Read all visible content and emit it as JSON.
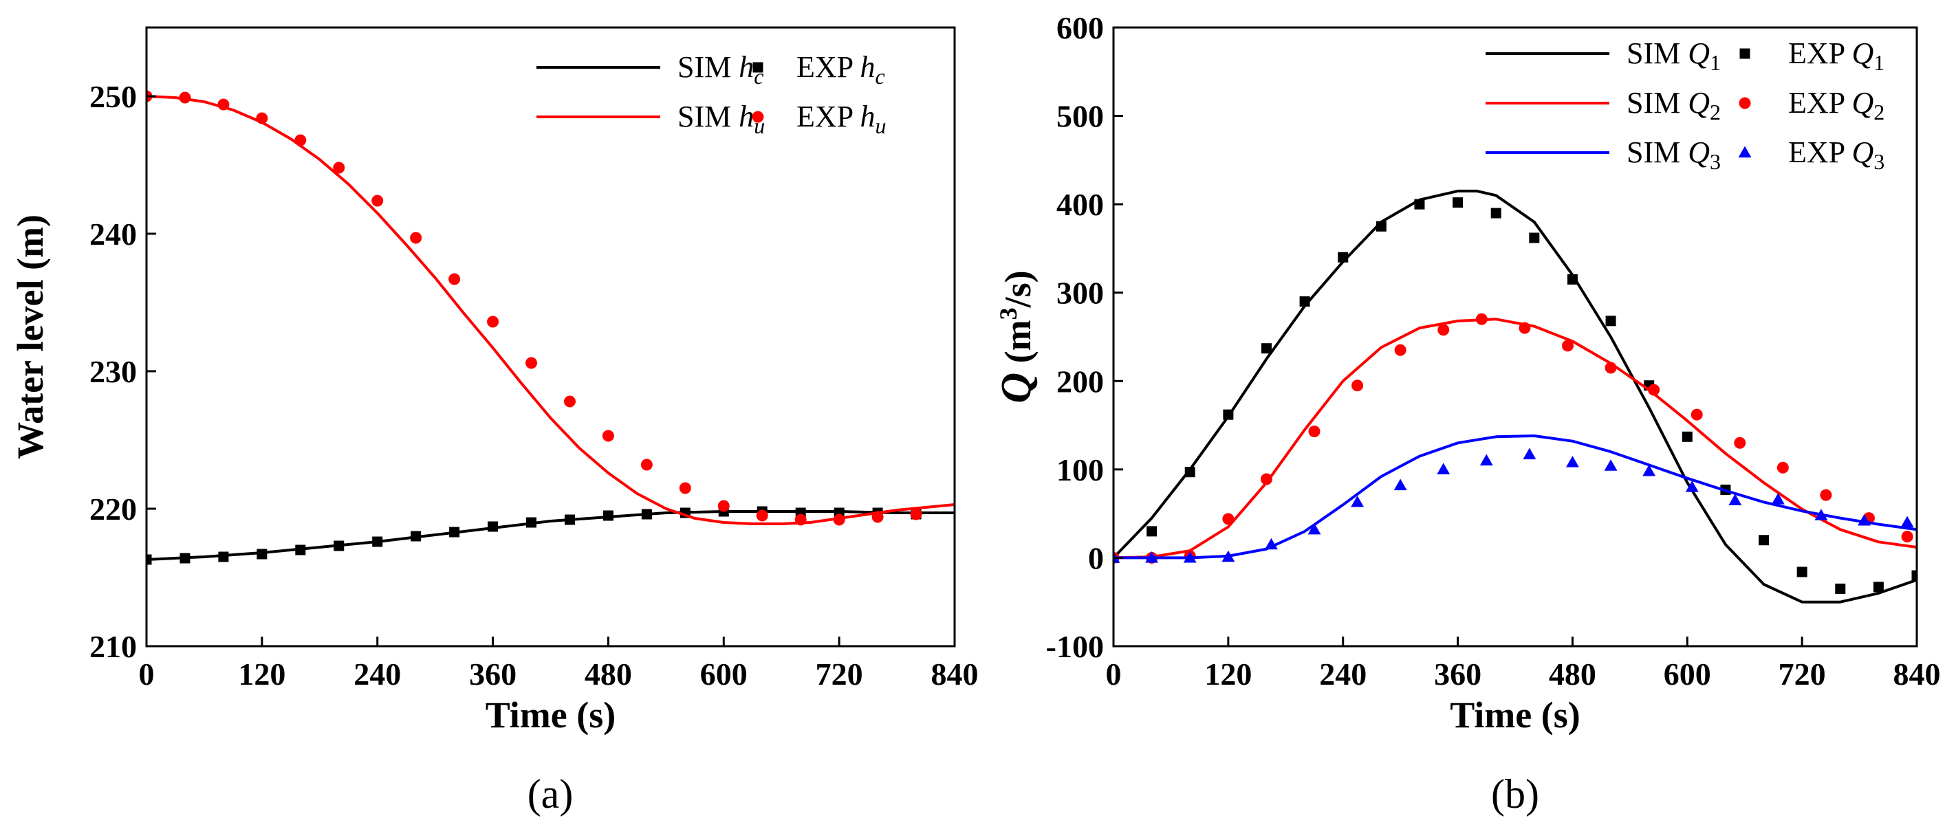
{
  "chart_data": [
    {
      "type": "line",
      "panel": "a",
      "caption": "(a)",
      "xlabel": "Time (s)",
      "ylabel": "Water level (m)",
      "xlim": [
        0,
        840
      ],
      "ylim": [
        210,
        255
      ],
      "xticks": [
        0,
        120,
        240,
        360,
        480,
        600,
        720,
        840
      ],
      "xtick_labels": [
        "0",
        "120",
        "240",
        "360",
        "480",
        "600",
        "720",
        "840"
      ],
      "yticks": [
        210,
        220,
        230,
        240,
        250
      ],
      "ytick_labels": [
        "210",
        "220",
        "230",
        "240",
        "250"
      ],
      "grid": false,
      "legend_position": "top-right",
      "series": [
        {
          "name": "SIM h_c",
          "legend_prefix": "SIM ",
          "legend_var": "h",
          "legend_sub": "c",
          "kind": "line",
          "color": "#000000",
          "x": [
            0,
            60,
            120,
            180,
            240,
            300,
            360,
            420,
            480,
            540,
            600,
            660,
            720,
            780,
            840
          ],
          "y": [
            216.3,
            216.5,
            216.8,
            217.2,
            217.6,
            218.1,
            218.6,
            219.1,
            219.4,
            219.7,
            219.8,
            219.8,
            219.8,
            219.7,
            219.7
          ]
        },
        {
          "name": "EXP h_c",
          "legend_prefix": "EXP ",
          "legend_var": "h",
          "legend_sub": "c",
          "kind": "square",
          "color": "#000000",
          "x": [
            0,
            40,
            80,
            120,
            160,
            200,
            240,
            280,
            320,
            360,
            400,
            440,
            480,
            520,
            560,
            600,
            640,
            680,
            720,
            760,
            800
          ],
          "y": [
            216.3,
            216.4,
            216.5,
            216.7,
            217.0,
            217.3,
            217.6,
            218.0,
            218.3,
            218.7,
            219.0,
            219.2,
            219.5,
            219.6,
            219.7,
            219.8,
            219.8,
            219.7,
            219.7,
            219.7,
            219.6
          ]
        },
        {
          "name": "SIM h_u",
          "legend_prefix": "SIM ",
          "legend_var": "h",
          "legend_sub": "u",
          "kind": "line",
          "color": "#ff0000",
          "x": [
            0,
            30,
            60,
            90,
            120,
            150,
            180,
            210,
            240,
            270,
            300,
            330,
            360,
            390,
            420,
            450,
            480,
            510,
            540,
            570,
            600,
            630,
            660,
            690,
            720,
            750,
            780,
            810,
            840
          ],
          "y": [
            250.0,
            249.9,
            249.6,
            249.0,
            248.1,
            246.9,
            245.4,
            243.6,
            241.5,
            239.2,
            236.8,
            234.2,
            231.7,
            229.1,
            226.6,
            224.4,
            222.6,
            221.1,
            220.0,
            219.3,
            219.0,
            218.9,
            218.9,
            219.0,
            219.3,
            219.6,
            219.9,
            220.1,
            220.3
          ]
        },
        {
          "name": "EXP h_u",
          "legend_prefix": "EXP ",
          "legend_var": "h",
          "legend_sub": "u",
          "kind": "circle",
          "color": "#ff0000",
          "x": [
            0,
            40,
            80,
            120,
            160,
            200,
            240,
            280,
            320,
            360,
            400,
            440,
            480,
            520,
            560,
            600,
            640,
            680,
            720,
            760,
            800
          ],
          "y": [
            250.0,
            249.9,
            249.4,
            248.4,
            246.8,
            244.8,
            242.4,
            239.7,
            236.7,
            233.6,
            230.6,
            227.8,
            225.3,
            223.2,
            221.5,
            220.2,
            219.5,
            219.2,
            219.2,
            219.4,
            219.6
          ]
        }
      ]
    },
    {
      "type": "line",
      "panel": "b",
      "caption": "(b)",
      "xlabel": "Time (s)",
      "ylabel_main": "Q",
      "ylabel_rest": " (m",
      "ylabel_sup": "3",
      "ylabel_end": "/s)",
      "xlim": [
        0,
        840
      ],
      "ylim": [
        -100,
        600
      ],
      "xticks": [
        0,
        120,
        240,
        360,
        480,
        600,
        720,
        840
      ],
      "xtick_labels": [
        "0",
        "120",
        "240",
        "360",
        "480",
        "600",
        "720",
        "840"
      ],
      "yticks": [
        -100,
        0,
        100,
        200,
        300,
        400,
        500,
        600
      ],
      "ytick_labels": [
        "-100",
        "0",
        "100",
        "200",
        "300",
        "400",
        "500",
        "600"
      ],
      "grid": false,
      "legend_position": "top-right",
      "series": [
        {
          "name": "SIM Q_1",
          "legend_prefix": "SIM ",
          "legend_var": "Q",
          "legend_sub": "1",
          "kind": "line",
          "color": "#000000",
          "x": [
            0,
            40,
            80,
            120,
            160,
            200,
            240,
            280,
            320,
            360,
            380,
            400,
            440,
            480,
            520,
            560,
            600,
            640,
            680,
            720,
            760,
            800,
            840
          ],
          "y": [
            0,
            45,
            100,
            160,
            225,
            285,
            335,
            380,
            405,
            415,
            415,
            410,
            380,
            320,
            250,
            170,
            85,
            15,
            -30,
            -50,
            -50,
            -40,
            -25
          ]
        },
        {
          "name": "EXP Q_1",
          "legend_prefix": "EXP ",
          "legend_var": "Q",
          "legend_sub": "1",
          "kind": "square",
          "color": "#000000",
          "x": [
            0,
            40,
            80,
            120,
            160,
            200,
            240,
            280,
            320,
            360,
            400,
            440,
            480,
            520,
            560,
            600,
            640,
            680,
            720,
            760,
            800,
            840
          ],
          "y": [
            0,
            30,
            97,
            162,
            237,
            290,
            340,
            375,
            400,
            402,
            390,
            362,
            315,
            268,
            195,
            137,
            77,
            20,
            -16,
            -35,
            -33,
            -20
          ]
        },
        {
          "name": "SIM Q_2",
          "legend_prefix": "SIM ",
          "legend_var": "Q",
          "legend_sub": "2",
          "kind": "line",
          "color": "#ff0000",
          "x": [
            0,
            40,
            80,
            120,
            160,
            200,
            240,
            280,
            320,
            360,
            400,
            440,
            480,
            520,
            560,
            600,
            640,
            680,
            720,
            760,
            800,
            840
          ],
          "y": [
            0,
            1,
            8,
            35,
            85,
            145,
            200,
            238,
            260,
            268,
            270,
            262,
            245,
            220,
            190,
            155,
            118,
            85,
            55,
            32,
            18,
            12
          ]
        },
        {
          "name": "EXP Q_2",
          "legend_prefix": "EXP ",
          "legend_var": "Q",
          "legend_sub": "2",
          "kind": "circle",
          "color": "#ff0000",
          "x": [
            0,
            40,
            80,
            120,
            160,
            210,
            255,
            300,
            345,
            385,
            430,
            475,
            520,
            565,
            610,
            655,
            700,
            745,
            790,
            830
          ],
          "y": [
            0,
            0,
            2,
            44,
            89,
            143,
            195,
            235,
            258,
            270,
            260,
            240,
            215,
            190,
            162,
            130,
            102,
            71,
            45,
            24
          ]
        },
        {
          "name": "SIM Q_3",
          "legend_prefix": "SIM ",
          "legend_var": "Q",
          "legend_sub": "3",
          "kind": "line",
          "color": "#0000ff",
          "x": [
            0,
            40,
            80,
            120,
            160,
            200,
            240,
            280,
            320,
            360,
            400,
            440,
            480,
            520,
            560,
            600,
            640,
            680,
            720,
            760,
            800,
            840
          ],
          "y": [
            0,
            0,
            0,
            2,
            10,
            30,
            60,
            92,
            115,
            130,
            137,
            138,
            132,
            120,
            105,
            90,
            76,
            63,
            53,
            45,
            38,
            32
          ]
        },
        {
          "name": "EXP Q_3",
          "legend_prefix": "EXP ",
          "legend_var": "Q",
          "legend_sub": "3",
          "kind": "triangle",
          "color": "#0000ff",
          "x": [
            0,
            40,
            80,
            120,
            165,
            210,
            255,
            300,
            345,
            390,
            435,
            480,
            520,
            560,
            605,
            650,
            695,
            740,
            785,
            830
          ],
          "y": [
            0,
            0,
            0,
            1,
            15,
            32,
            63,
            82,
            100,
            110,
            117,
            108,
            104,
            98,
            80,
            65,
            66,
            48,
            42,
            40
          ]
        }
      ]
    }
  ]
}
